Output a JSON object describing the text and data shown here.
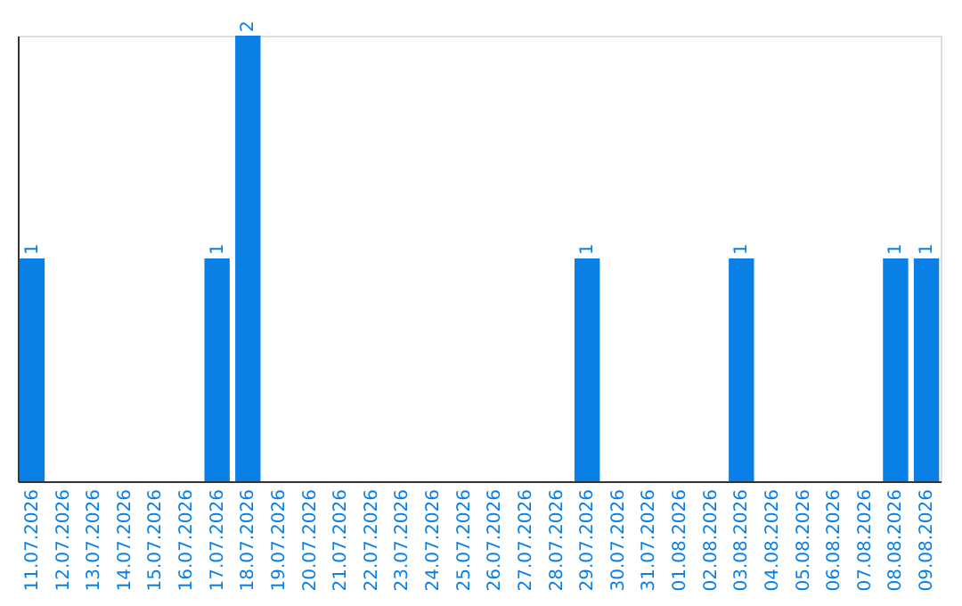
{
  "chart_data": {
    "type": "bar",
    "categories": [
      "11.07.2026",
      "12.07.2026",
      "13.07.2026",
      "14.07.2026",
      "15.07.2026",
      "16.07.2026",
      "17.07.2026",
      "18.07.2026",
      "19.07.2026",
      "20.07.2026",
      "21.07.2026",
      "22.07.2026",
      "23.07.2026",
      "24.07.2026",
      "25.07.2026",
      "26.07.2026",
      "27.07.2026",
      "28.07.2026",
      "29.07.2026",
      "30.07.2026",
      "31.07.2026",
      "01.08.2026",
      "02.08.2026",
      "03.08.2026",
      "04.08.2026",
      "05.08.2026",
      "06.08.2026",
      "07.08.2026",
      "08.08.2026",
      "09.08.2026"
    ],
    "values": [
      1,
      0,
      0,
      0,
      0,
      0,
      1,
      2,
      0,
      0,
      0,
      0,
      0,
      0,
      0,
      0,
      0,
      0,
      1,
      0,
      0,
      0,
      0,
      1,
      0,
      0,
      0,
      0,
      1,
      1
    ],
    "value_labels": [
      "1",
      null,
      null,
      null,
      null,
      null,
      "1",
      "2",
      null,
      null,
      null,
      null,
      null,
      null,
      null,
      null,
      null,
      null,
      "1",
      null,
      null,
      null,
      null,
      "1",
      null,
      null,
      null,
      null,
      "1",
      "1"
    ],
    "color": "#0a7fe6",
    "grid": false,
    "tick_labels": "x"
  }
}
